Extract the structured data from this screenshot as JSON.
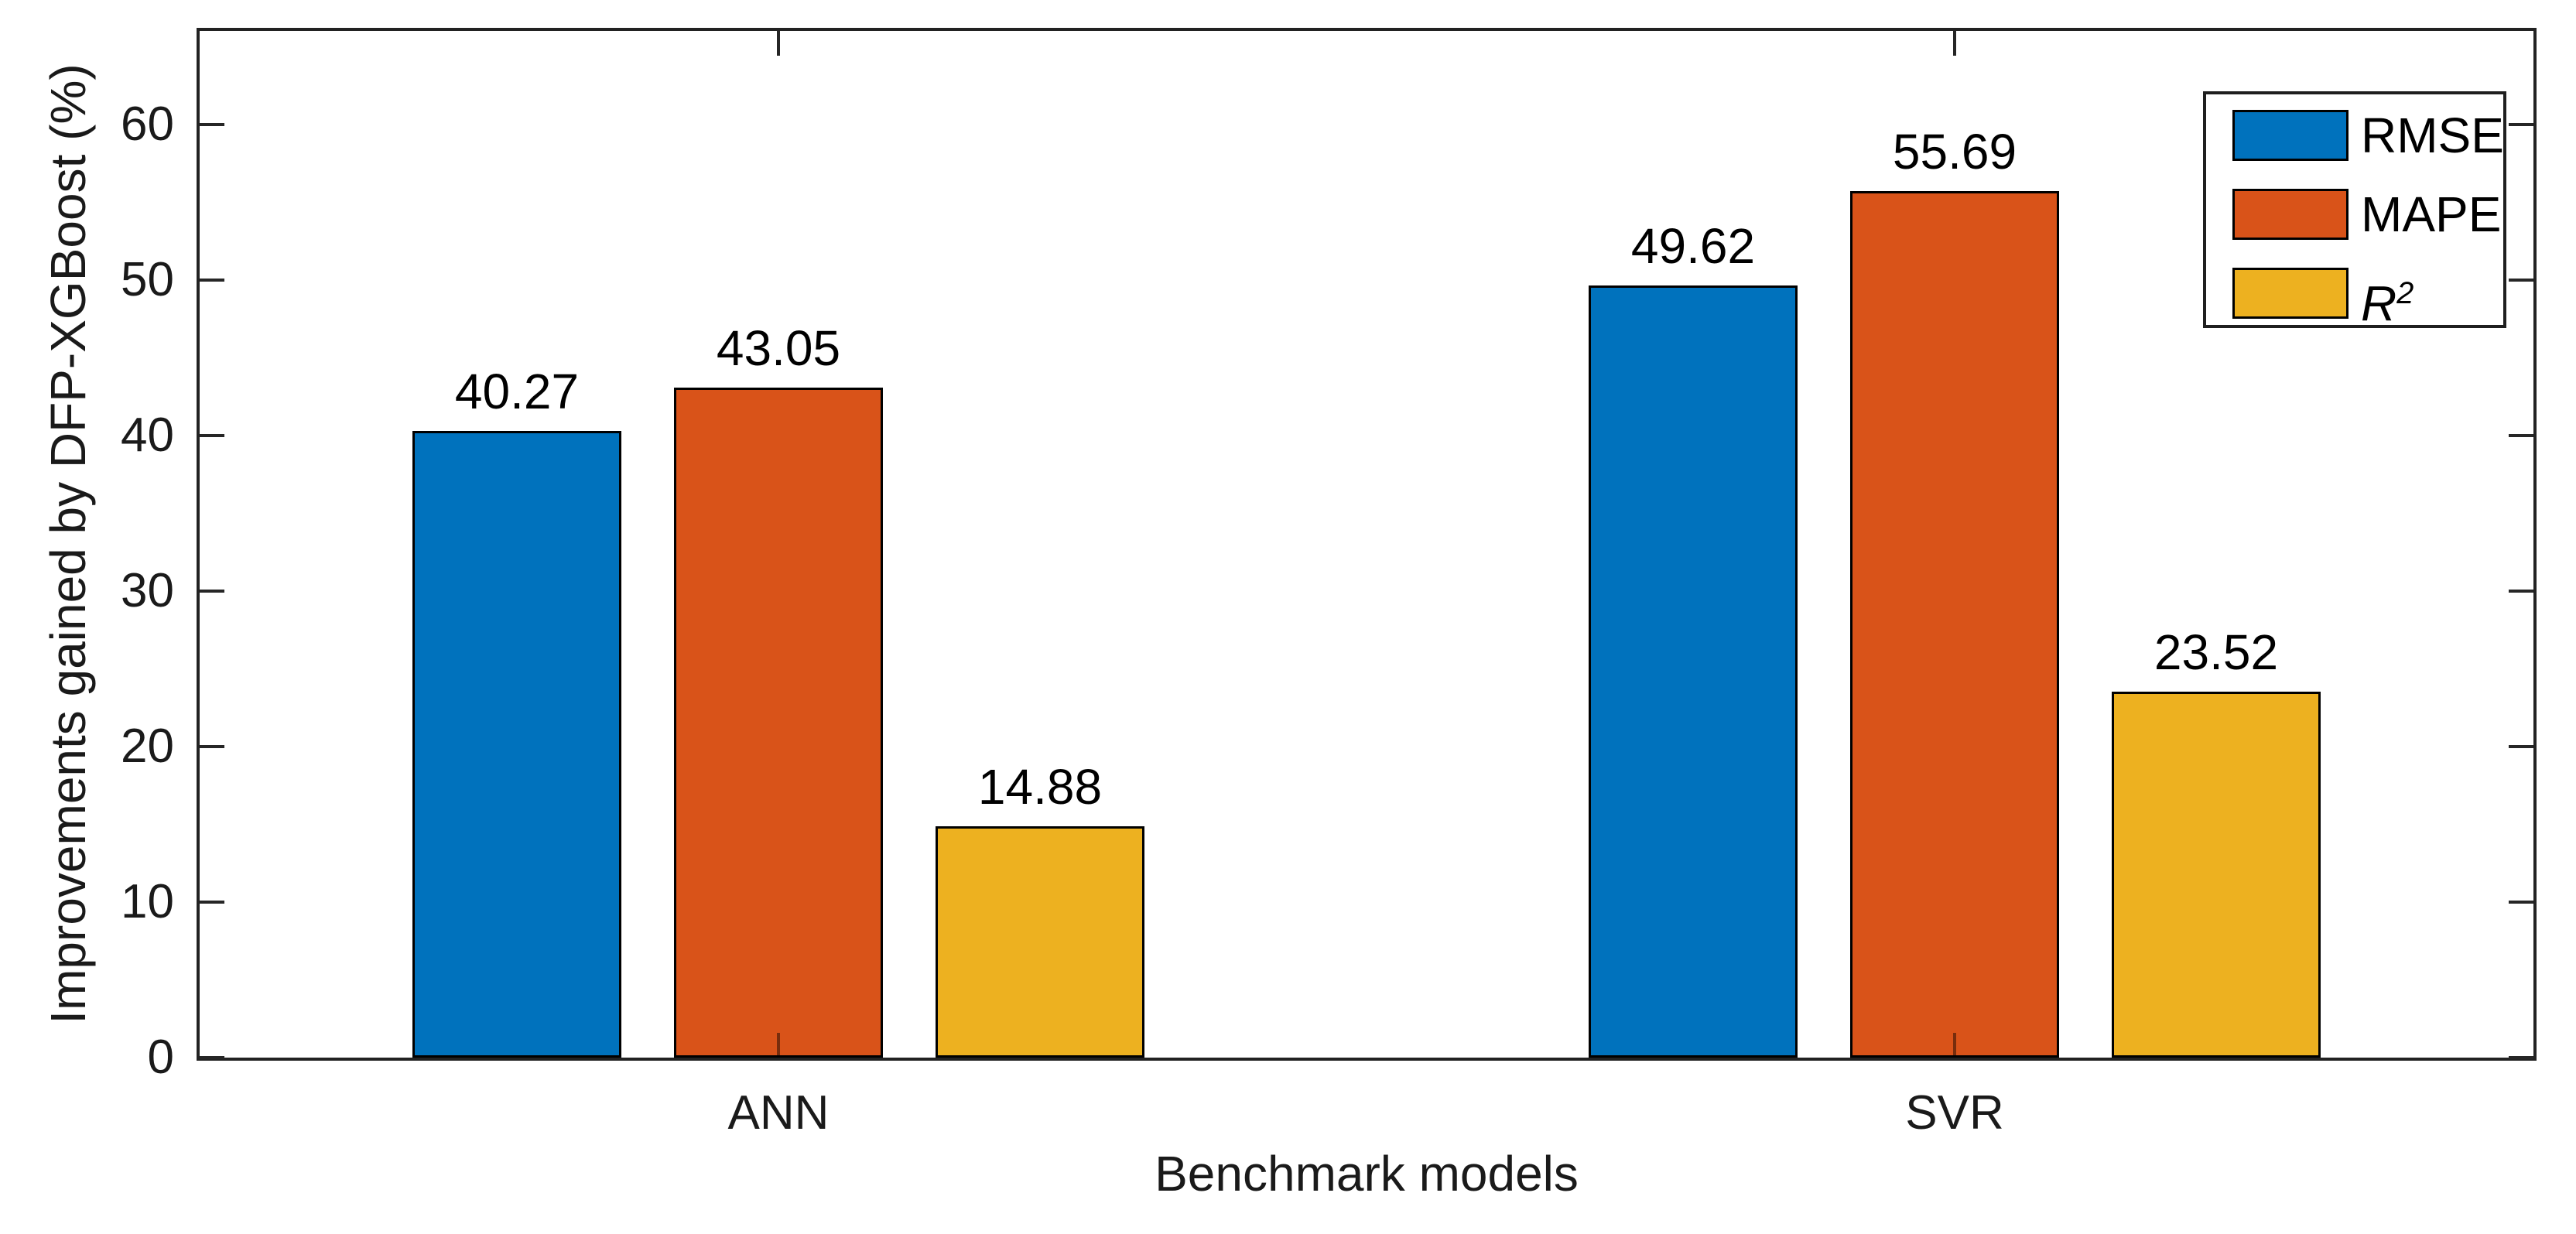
{
  "chart_data": {
    "type": "bar",
    "title": "",
    "categories": [
      "ANN",
      "SVR"
    ],
    "series": [
      {
        "key": "rmse",
        "name": "RMSE",
        "color": "#0072BD",
        "values": [
          40.27,
          49.62
        ],
        "value_labels": [
          "40.27",
          "49.62"
        ]
      },
      {
        "key": "mape",
        "name": "MAPE",
        "color": "#D95319",
        "values": [
          43.05,
          55.69
        ],
        "value_labels": [
          "43.05",
          "55.69"
        ]
      },
      {
        "key": "r2",
        "name": "R²",
        "color": "#EDB120",
        "values": [
          14.88,
          23.52
        ],
        "value_labels": [
          "14.88",
          "23.52"
        ]
      }
    ],
    "xlabel": "Benchmark models",
    "ylabel": "Improvements gained by DFP-XGBoost (%)",
    "yticks": [
      "0",
      "10",
      "20",
      "30",
      "40",
      "50",
      "60"
    ],
    "ytick_values": [
      0,
      10,
      20,
      30,
      40,
      50,
      60
    ],
    "ylim": [
      0,
      66
    ],
    "grid": false,
    "legend": {
      "position": "top-right",
      "entries": [
        {
          "label": "RMSE",
          "italic": false,
          "superscript": "",
          "color": "#0072BD"
        },
        {
          "label": "MAPE",
          "italic": false,
          "superscript": "",
          "color": "#D95319"
        },
        {
          "label": "R",
          "italic": true,
          "superscript": "2",
          "color": "#EDB120"
        }
      ]
    },
    "colors": {
      "axis": "#262626",
      "text": "#1a1a1a",
      "bar_edge": "#000000",
      "background": "#FFFFFF"
    }
  }
}
